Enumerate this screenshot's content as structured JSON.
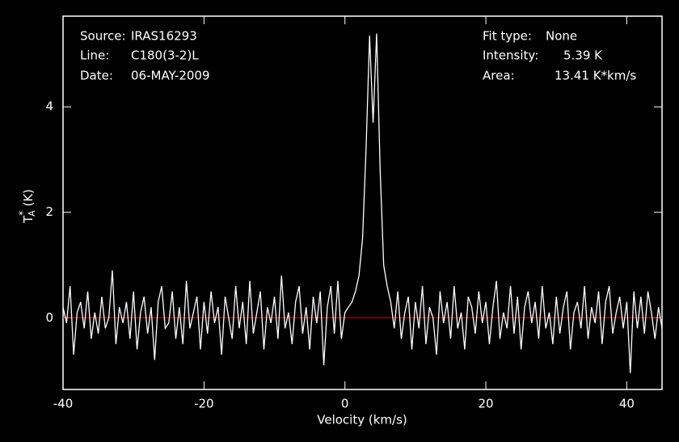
{
  "chart_data": {
    "type": "line",
    "info_left": [
      {
        "label": "Source:",
        "value": "IRAS16293"
      },
      {
        "label": "Line:",
        "value": "C180(3-2)L"
      },
      {
        "label": "Date:",
        "value": "06-MAY-2009"
      }
    ],
    "info_right": [
      {
        "label": "Fit type:",
        "value": "None"
      },
      {
        "label": "Intensity:",
        "value": "5.39 K"
      },
      {
        "label": "Area:",
        "value": "13.41 K*km/s"
      }
    ],
    "x_label": "Velocity (km/s)",
    "y_label": {
      "base": "T",
      "sub": "A",
      "sup": "*",
      "unit": " (K)"
    },
    "xlim": [
      -40,
      45
    ],
    "ylim": [
      -1.36,
      5.72
    ],
    "xticks": [
      -40,
      -20,
      0,
      20,
      40
    ],
    "yticks": [
      0,
      2,
      4
    ],
    "baseline": 0,
    "baseline_color": "#e00000",
    "x": [
      -40,
      -39.5,
      -39,
      -38.5,
      -38,
      -37.5,
      -37,
      -36.5,
      -36,
      -35.5,
      -35,
      -34.5,
      -34,
      -33.5,
      -33,
      -32.5,
      -32,
      -31.5,
      -31,
      -30.5,
      -30,
      -29.5,
      -29,
      -28.5,
      -28,
      -27.5,
      -27,
      -26.5,
      -26,
      -25.5,
      -25,
      -24.5,
      -24,
      -23.5,
      -23,
      -22.5,
      -22,
      -21.5,
      -21,
      -20.5,
      -20,
      -19.5,
      -19,
      -18.5,
      -18,
      -17.5,
      -17,
      -16.5,
      -16,
      -15.5,
      -15,
      -14.5,
      -14,
      -13.5,
      -13,
      -12.5,
      -12,
      -11.5,
      -11,
      -10.5,
      -10,
      -9.5,
      -9,
      -8.5,
      -8,
      -7.5,
      -7,
      -6.5,
      -6,
      -5.5,
      -5,
      -4.5,
      -4,
      -3.5,
      -3,
      -2.5,
      -2,
      -1.5,
      -1,
      -0.5,
      0,
      0.5,
      1,
      1.5,
      2,
      2.5,
      3,
      3.5,
      4,
      4.5,
      5,
      5.5,
      6,
      6.5,
      7,
      7.5,
      8,
      8.5,
      9,
      9.5,
      10,
      10.5,
      11,
      11.5,
      12,
      12.5,
      13,
      13.5,
      14,
      14.5,
      15,
      15.5,
      16,
      16.5,
      17,
      17.5,
      18,
      18.5,
      19,
      19.5,
      20,
      20.5,
      21,
      21.5,
      22,
      22.5,
      23,
      23.5,
      24,
      24.5,
      25,
      25.5,
      26,
      26.5,
      27,
      27.5,
      28,
      28.5,
      29,
      29.5,
      30,
      30.5,
      31,
      31.5,
      32,
      32.5,
      33,
      33.5,
      34,
      34.5,
      35,
      35.5,
      36,
      36.5,
      37,
      37.5,
      38,
      38.5,
      39,
      39.5,
      40,
      40.5,
      41,
      41.5,
      42,
      42.5,
      43,
      43.5,
      44,
      44.5,
      45
    ],
    "series": [
      {
        "color": "#ffffff",
        "values": [
          0.2,
          -0.1,
          0.6,
          -0.7,
          0.1,
          0.3,
          -0.2,
          0.5,
          -0.4,
          0.1,
          -0.3,
          0.4,
          -0.2,
          0.0,
          0.9,
          -0.5,
          0.2,
          -0.1,
          0.3,
          -0.4,
          0.5,
          -0.6,
          0.1,
          0.4,
          -0.3,
          0.2,
          -0.8,
          0.3,
          0.6,
          -0.2,
          -0.1,
          0.5,
          -0.4,
          0.2,
          -0.5,
          0.7,
          -0.2,
          0.1,
          0.4,
          -0.6,
          0.3,
          -0.3,
          0.5,
          -0.1,
          0.2,
          -0.7,
          0.4,
          0.0,
          -0.4,
          0.6,
          -0.2,
          0.3,
          -0.5,
          0.7,
          -0.3,
          0.1,
          0.5,
          -0.6,
          0.2,
          -0.1,
          0.4,
          -0.4,
          0.8,
          -0.2,
          0.1,
          -0.5,
          0.3,
          0.6,
          -0.3,
          0.2,
          -0.6,
          0.4,
          -0.1,
          0.5,
          -0.9,
          0.2,
          0.6,
          -0.3,
          0.7,
          -0.4,
          0.1,
          0.2,
          0.3,
          0.5,
          0.8,
          1.5,
          3.2,
          5.35,
          3.7,
          5.39,
          2.8,
          1.0,
          0.6,
          0.3,
          -0.2,
          0.5,
          -0.4,
          0.1,
          0.4,
          -0.6,
          0.3,
          -0.2,
          0.6,
          -0.5,
          0.2,
          0.0,
          -0.7,
          0.5,
          -0.1,
          0.3,
          -0.4,
          0.6,
          -0.2,
          0.1,
          -0.6,
          0.4,
          0.2,
          -0.3,
          0.5,
          -0.1,
          0.3,
          -0.5,
          0.2,
          0.7,
          -0.4,
          0.1,
          -0.2,
          0.6,
          -0.3,
          0.4,
          -0.6,
          0.2,
          0.5,
          -0.1,
          0.3,
          -0.4,
          0.6,
          -0.2,
          0.1,
          -0.5,
          0.4,
          -0.3,
          0.2,
          0.5,
          -0.6,
          0.1,
          0.3,
          -0.2,
          0.6,
          -0.4,
          0.2,
          -0.1,
          0.5,
          -0.5,
          0.3,
          0.6,
          -0.3,
          0.1,
          0.4,
          -0.2,
          0.3,
          -1.05,
          0.5,
          -0.2,
          0.4,
          -0.3,
          0.5,
          0.1,
          -0.4,
          0.2,
          -0.2
        ]
      }
    ]
  }
}
